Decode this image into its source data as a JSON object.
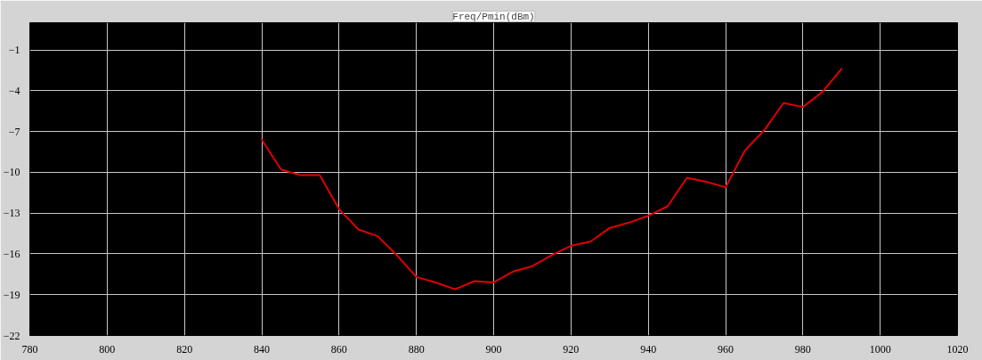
{
  "chart_data": {
    "type": "line",
    "title": "Freq/Pmin(dBm)",
    "x": [
      840,
      845,
      850,
      855,
      860,
      865,
      870,
      875,
      880,
      885,
      890,
      895,
      900,
      905,
      910,
      915,
      920,
      925,
      930,
      935,
      940,
      945,
      950,
      955,
      960,
      965,
      970,
      975,
      980,
      985,
      990
    ],
    "series": [
      {
        "color": "#e00000",
        "values": [
          -7.6,
          -9.8,
          -10.2,
          -10.2,
          -12.7,
          -14.2,
          -14.7,
          -16.1,
          -17.7,
          -18.1,
          -18.6,
          -18.0,
          -18.1,
          -17.3,
          -16.9,
          -16.1,
          -15.4,
          -15.1,
          -14.1,
          -13.7,
          -13.2,
          -12.5,
          -10.4,
          -10.7,
          -11.1,
          -8.4,
          -6.9,
          -4.9,
          -5.2,
          -4.1,
          -2.4
        ]
      }
    ],
    "xlim": [
      780,
      1020
    ],
    "ylim": [
      -22,
      1
    ],
    "xticks": [
      780,
      800,
      820,
      840,
      860,
      880,
      900,
      920,
      940,
      960,
      980,
      1000,
      1020
    ],
    "yticks": [
      -22,
      -19,
      -16,
      -13,
      -10,
      -7,
      -4,
      -1
    ],
    "grid": true,
    "line_style": "solid"
  }
}
